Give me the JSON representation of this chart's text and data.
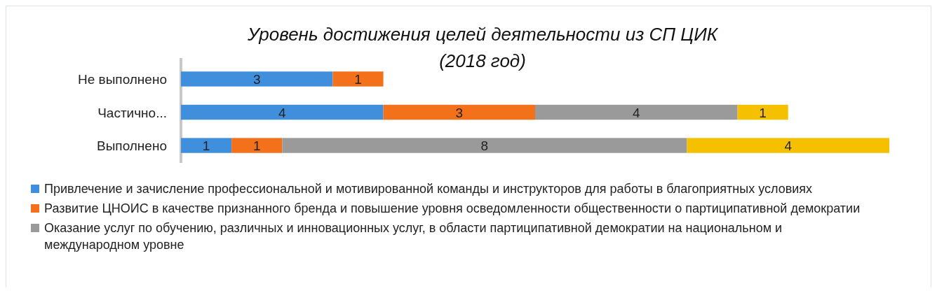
{
  "chart_data": {
    "type": "bar",
    "orientation": "horizontal",
    "stacked": true,
    "data_labels": true,
    "legend": "bottom",
    "grid": false,
    "title": "Уровень достижения целей деятельности из СП ЦИК\n(2018 год)",
    "categories": [
      "Не выполнено",
      "Частично...",
      "Выполнено"
    ],
    "series": [
      {
        "name": "Привлечение и зачисление профессиональной и мотивированной команды и инструкторов для работы в благоприятных условиях",
        "color": "#3f8fdd",
        "values": [
          3,
          4,
          1
        ]
      },
      {
        "name": "Развитие ЦНОИС в качестве признанного бренда и повышение уровня осведомленности общественности о партиципативной демократии",
        "color": "#f2711a",
        "values": [
          1,
          3,
          1
        ]
      },
      {
        "name": "Оказание услуг по обучению, различных и инновационных услуг, в области партиципативной демократии на национальном и международном уровне",
        "color": "#9a9a9a",
        "values": [
          null,
          4,
          8
        ]
      },
      {
        "color": "#f5c000",
        "values": [
          null,
          1,
          4
        ]
      }
    ]
  }
}
